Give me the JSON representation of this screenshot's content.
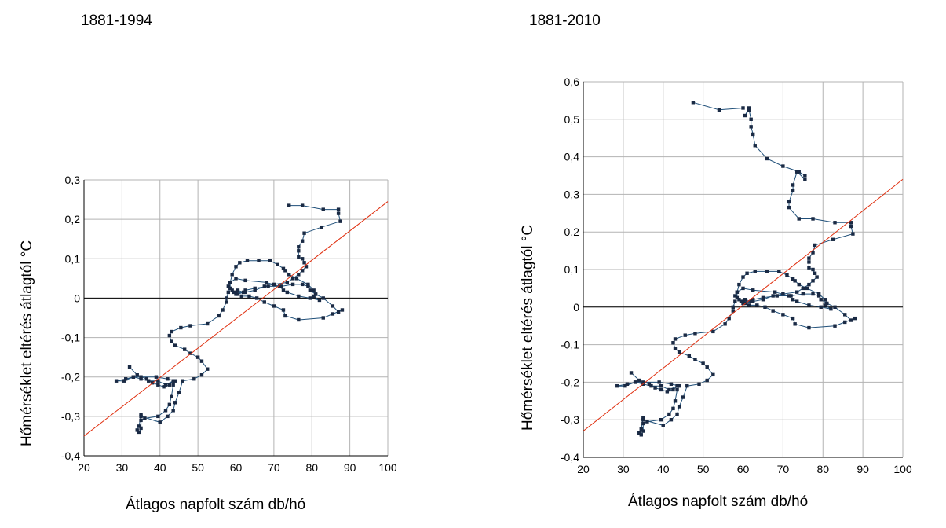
{
  "chart_data": [
    {
      "type": "scatter",
      "title": "1881-1994",
      "xlabel": "Átlagos napfolt szám db/hó",
      "ylabel": "Hőmérséklet eltérés átlagtól °C",
      "xlim": [
        20,
        100
      ],
      "ylim": [
        -0.4,
        0.3
      ],
      "xticks": [
        20,
        30,
        40,
        50,
        60,
        70,
        80,
        90,
        100
      ],
      "yticks": [
        -0.4,
        -0.3,
        -0.2,
        -0.1,
        0,
        0.1,
        0.2,
        0.3
      ],
      "xtick_labels": [
        "20",
        "30",
        "40",
        "50",
        "60",
        "70",
        "80",
        "90",
        "100"
      ],
      "ytick_labels": [
        "-0,4",
        "-0,3",
        "-0,2",
        "-0,1",
        "0",
        "0,1",
        "0,2",
        "0,3"
      ],
      "grid": true,
      "series_color": "#1f4f79",
      "trend_color": "#e03010",
      "trend_line": {
        "x": [
          20,
          100
        ],
        "y": [
          -0.35,
          0.245
        ]
      },
      "series": [
        {
          "x": [
            32,
            34,
            36.5,
            38,
            39.5,
            41,
            42.5,
            43.5,
            41.5,
            39.5,
            37,
            35,
            33,
            31,
            28.5,
            30.5,
            33,
            35,
            39,
            42,
            44,
            43.5,
            43,
            42.5,
            41.5,
            39.5,
            36,
            35,
            35,
            34.5,
            34,
            34.5,
            35,
            35,
            40,
            42,
            43.5,
            44,
            45,
            46,
            49,
            51,
            52.5,
            51,
            50,
            48,
            46.5,
            44,
            43,
            42.5,
            43,
            45.5,
            48,
            52.5,
            55.5,
            56.5,
            57.5,
            57.5,
            58,
            58.5,
            58.5,
            59,
            60,
            61,
            63,
            66,
            69,
            71,
            72.5,
            73,
            74,
            76,
            79,
            80.5,
            81,
            83,
            85.5,
            87,
            88,
            85.5,
            83,
            76.5,
            73,
            72.5,
            70,
            67.5,
            65.5,
            63.5,
            61.5,
            60.5,
            62,
            60.5,
            59.5,
            60,
            62.5,
            65,
            68.5,
            72,
            75,
            77.5,
            79,
            79.5,
            81,
            80.5,
            82,
            79.5,
            76.5,
            73.5,
            72.5,
            71.5,
            68,
            62.5,
            60,
            58.5,
            58,
            59,
            60,
            62.5,
            65,
            67.5,
            70,
            73.5,
            75,
            76.5,
            77.5,
            78.5,
            78,
            77.5,
            76.5,
            76.5,
            76.5,
            77.5,
            78,
            82.5,
            87.5,
            87,
            87,
            83,
            77.5,
            74
          ],
          "y": [
            -0.175,
            -0.195,
            -0.205,
            -0.215,
            -0.22,
            -0.225,
            -0.22,
            -0.21,
            -0.22,
            -0.21,
            -0.21,
            -0.205,
            -0.2,
            -0.205,
            -0.21,
            -0.21,
            -0.2,
            -0.2,
            -0.2,
            -0.205,
            -0.21,
            -0.22,
            -0.25,
            -0.27,
            -0.285,
            -0.3,
            -0.305,
            -0.31,
            -0.33,
            -0.34,
            -0.335,
            -0.325,
            -0.295,
            -0.3,
            -0.315,
            -0.3,
            -0.285,
            -0.265,
            -0.24,
            -0.21,
            -0.205,
            -0.195,
            -0.18,
            -0.16,
            -0.15,
            -0.14,
            -0.13,
            -0.12,
            -0.11,
            -0.095,
            -0.085,
            -0.075,
            -0.07,
            -0.065,
            -0.045,
            -0.03,
            -0.01,
            0,
            0.015,
            0.025,
            0.04,
            0.06,
            0.08,
            0.09,
            0.095,
            0.095,
            0.095,
            0.085,
            0.075,
            0.07,
            0.06,
            0.05,
            0.035,
            0.02,
            0.01,
            0,
            -0.02,
            -0.035,
            -0.03,
            -0.04,
            -0.05,
            -0.055,
            -0.045,
            -0.03,
            -0.02,
            -0.01,
            0,
            0.005,
            0.005,
            0.01,
            0.015,
            0.02,
            0.015,
            0.01,
            0.02,
            0.025,
            0.03,
            0.03,
            0.035,
            0.035,
            0.03,
            0.02,
            0.01,
            0.005,
            -0.005,
            0,
            0.005,
            0.015,
            0.02,
            0.03,
            0.04,
            0.045,
            0.05,
            0.04,
            0.03,
            0.02,
            0.015,
            0.015,
            0.02,
            0.03,
            0.035,
            0.04,
            0.05,
            0.06,
            0.07,
            0.08,
            0.09,
            0.1,
            0.105,
            0.12,
            0.13,
            0.145,
            0.165,
            0.18,
            0.195,
            0.215,
            0.225,
            0.225,
            0.235,
            0.235
          ]
        }
      ]
    },
    {
      "type": "scatter",
      "title": "1881-2010",
      "xlabel": "Átlagos napfolt szám db/hó",
      "ylabel": "Hőmérséklet eltérés átlagtól °C",
      "xlim": [
        20,
        100
      ],
      "ylim": [
        -0.4,
        0.6
      ],
      "xticks": [
        20,
        30,
        40,
        50,
        60,
        70,
        80,
        90,
        100
      ],
      "yticks": [
        -0.4,
        -0.3,
        -0.2,
        -0.1,
        0,
        0.1,
        0.2,
        0.3,
        0.4,
        0.5,
        0.6
      ],
      "xtick_labels": [
        "20",
        "30",
        "40",
        "50",
        "60",
        "70",
        "80",
        "90",
        "100"
      ],
      "ytick_labels": [
        "-0,4",
        "-0,3",
        "-0,2",
        "-0,1",
        "0",
        "0,1",
        "0,2",
        "0,3",
        "0,4",
        "0,5",
        "0,6"
      ],
      "grid": true,
      "series_color": "#1f4f79",
      "trend_color": "#e03010",
      "trend_line": {
        "x": [
          20,
          100
        ],
        "y": [
          -0.33,
          0.34
        ]
      },
      "series": [
        {
          "x": [
            32,
            34,
            36.5,
            38,
            39.5,
            41,
            42.5,
            43.5,
            41.5,
            39.5,
            37,
            35,
            33,
            31,
            28.5,
            30.5,
            33,
            35,
            39,
            42,
            44,
            43.5,
            43,
            42.5,
            41.5,
            39.5,
            36,
            35,
            35,
            34.5,
            34,
            34.5,
            35,
            35,
            40,
            42,
            43.5,
            44,
            45,
            46,
            49,
            51,
            52.5,
            51,
            50,
            48,
            46.5,
            44,
            43,
            42.5,
            43,
            45.5,
            48,
            52.5,
            55.5,
            56.5,
            57.5,
            57.5,
            58,
            58.5,
            58.5,
            59,
            60,
            61,
            63,
            66,
            69,
            71,
            72.5,
            73,
            74,
            76,
            79,
            80.5,
            81,
            83,
            85.5,
            87,
            88,
            85.5,
            83,
            76.5,
            73,
            72.5,
            70,
            67.5,
            65.5,
            63.5,
            61.5,
            60.5,
            62,
            60.5,
            59.5,
            60,
            62.5,
            65,
            68.5,
            72,
            75,
            77.5,
            79,
            79.5,
            81,
            80.5,
            82,
            79.5,
            76.5,
            73.5,
            72.5,
            71.5,
            68,
            62.5,
            60,
            58.5,
            58,
            59,
            60,
            62.5,
            65,
            67.5,
            70,
            73.5,
            75,
            76.5,
            77.5,
            78.5,
            78,
            77.5,
            76.5,
            76.5,
            76.5,
            77.5,
            78,
            82.5,
            87.5,
            87,
            87,
            83,
            77.5,
            74,
            71.5,
            71.5,
            72.5,
            72.5,
            73.5,
            75.5,
            75.5,
            74,
            70,
            66,
            63,
            62.5,
            62,
            62,
            61.5,
            60.5,
            61.5,
            60,
            54,
            47.5
          ],
          "y": [
            -0.175,
            -0.195,
            -0.205,
            -0.215,
            -0.22,
            -0.225,
            -0.22,
            -0.21,
            -0.22,
            -0.21,
            -0.21,
            -0.205,
            -0.2,
            -0.205,
            -0.21,
            -0.21,
            -0.2,
            -0.2,
            -0.2,
            -0.205,
            -0.21,
            -0.22,
            -0.25,
            -0.27,
            -0.285,
            -0.3,
            -0.305,
            -0.31,
            -0.33,
            -0.34,
            -0.335,
            -0.325,
            -0.295,
            -0.3,
            -0.315,
            -0.3,
            -0.285,
            -0.265,
            -0.24,
            -0.21,
            -0.205,
            -0.195,
            -0.18,
            -0.16,
            -0.15,
            -0.14,
            -0.13,
            -0.12,
            -0.11,
            -0.095,
            -0.085,
            -0.075,
            -0.07,
            -0.065,
            -0.045,
            -0.03,
            -0.01,
            0,
            0.015,
            0.025,
            0.04,
            0.06,
            0.08,
            0.09,
            0.095,
            0.095,
            0.095,
            0.085,
            0.075,
            0.07,
            0.06,
            0.05,
            0.035,
            0.02,
            0.01,
            0,
            -0.02,
            -0.035,
            -0.03,
            -0.04,
            -0.05,
            -0.055,
            -0.045,
            -0.03,
            -0.02,
            -0.01,
            0,
            0.005,
            0.005,
            0.01,
            0.015,
            0.02,
            0.015,
            0.01,
            0.02,
            0.025,
            0.03,
            0.03,
            0.035,
            0.035,
            0.03,
            0.02,
            0.01,
            0.005,
            -0.005,
            0,
            0.005,
            0.015,
            0.02,
            0.03,
            0.04,
            0.045,
            0.05,
            0.04,
            0.03,
            0.02,
            0.015,
            0.015,
            0.02,
            0.03,
            0.035,
            0.04,
            0.05,
            0.06,
            0.07,
            0.08,
            0.09,
            0.1,
            0.105,
            0.12,
            0.13,
            0.145,
            0.165,
            0.18,
            0.195,
            0.215,
            0.225,
            0.225,
            0.235,
            0.235,
            0.265,
            0.28,
            0.31,
            0.325,
            0.36,
            0.34,
            0.35,
            0.36,
            0.375,
            0.395,
            0.43,
            0.46,
            0.48,
            0.5,
            0.525,
            0.51,
            0.53,
            0.53,
            0.525,
            0.545
          ]
        }
      ]
    }
  ]
}
